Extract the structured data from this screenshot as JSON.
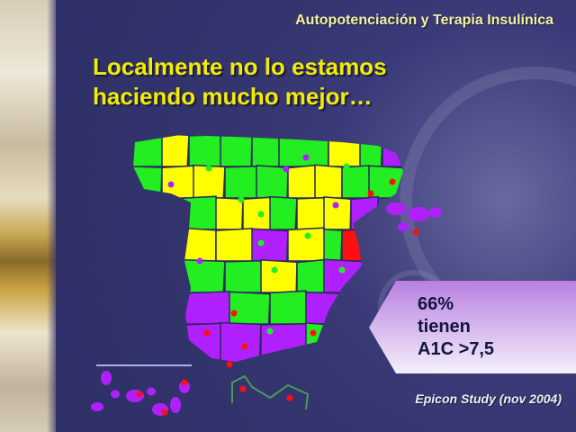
{
  "header": {
    "subtitle": "Autopotenciación y Terapia Insulínica",
    "title_line1": "Localmente no lo estamos",
    "title_line2": "haciendo mucho mejor…"
  },
  "callout": {
    "line1": "66%",
    "line2": "tienen",
    "line3": "A1C >7,5"
  },
  "source": "Epicon Study (nov 2004)",
  "colors": {
    "title": "#f2ec00",
    "green": "#22ee22",
    "yellow": "#ffff00",
    "purple": "#b020ff",
    "red": "#ff1010",
    "callout": "#c9a8e8"
  }
}
